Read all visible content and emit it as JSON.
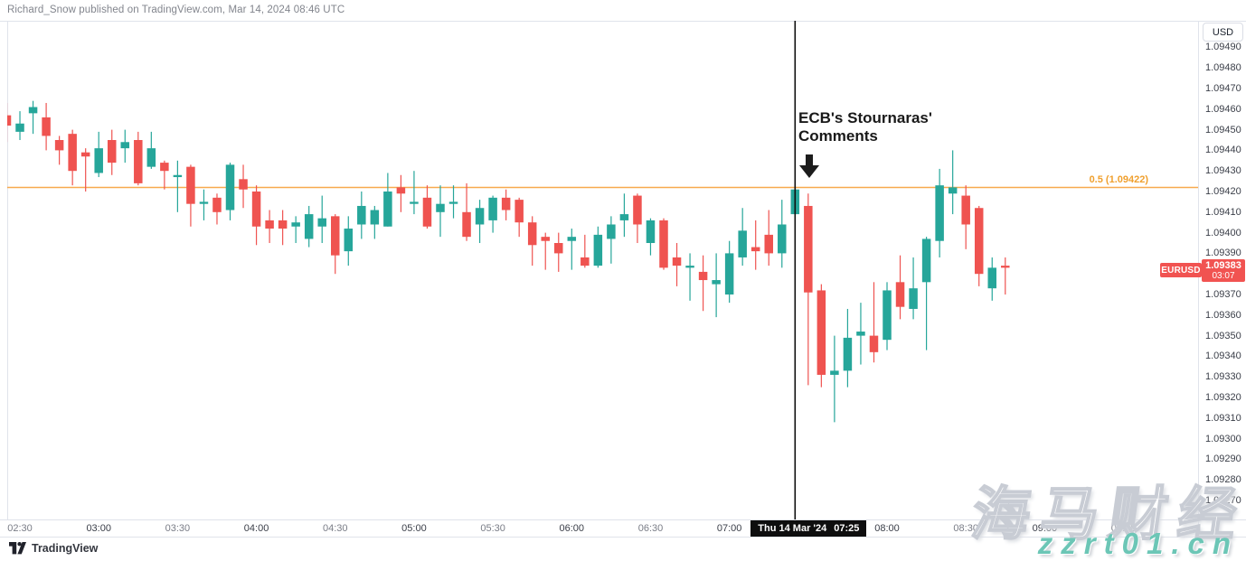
{
  "attribution": "Richard_Snow published on TradingView.com, Mar 14, 2024 08:46 UTC",
  "price_axis": {
    "currency_label": "USD"
  },
  "last_price": {
    "symbol": "EURUSD",
    "value": "1.09383",
    "countdown": "03:07"
  },
  "fib_level": {
    "label": "0.5 (1.09422)",
    "price": 1.09422,
    "line_color": "#F7A94E",
    "text_color": "#F0A02E"
  },
  "event_marker": {
    "annotation_line1": "ECB's Stournaras'",
    "annotation_line2": "Comments",
    "axis_date": "Thu 14 Mar '24",
    "axis_time": "07:25",
    "candle_index": 60
  },
  "footer": {
    "brand": "TradingView"
  },
  "watermark": {
    "title": "海马财经",
    "url": "zzrt01.cn",
    "url_color": "#6CC6B6"
  },
  "chart_data": {
    "type": "candlestick",
    "symbol": "EURUSD",
    "interval": "5m",
    "grid": false,
    "legend_position": "none",
    "up_color": "#26A69A",
    "down_color": "#EF5350",
    "y_axis": {
      "visible_range": [
        1.09262,
        1.09502
      ],
      "ticks": [
        "1.09490",
        "1.09480",
        "1.09470",
        "1.09460",
        "1.09450",
        "1.09440",
        "1.09430",
        "1.09420",
        "1.09410",
        "1.09400",
        "1.09390",
        "1.09370",
        "1.09360",
        "1.09350",
        "1.09340",
        "1.09330",
        "1.09320",
        "1.09310",
        "1.09300",
        "1.09290",
        "1.09280",
        "1.09270"
      ]
    },
    "x_axis": {
      "ticks": [
        {
          "label": "02:30",
          "i": 1,
          "emph": false
        },
        {
          "label": "03:00",
          "i": 7,
          "emph": true
        },
        {
          "label": "03:30",
          "i": 13,
          "emph": false
        },
        {
          "label": "04:00",
          "i": 19,
          "emph": true
        },
        {
          "label": "04:30",
          "i": 25,
          "emph": false
        },
        {
          "label": "05:00",
          "i": 31,
          "emph": true
        },
        {
          "label": "05:30",
          "i": 37,
          "emph": false
        },
        {
          "label": "06:00",
          "i": 43,
          "emph": true
        },
        {
          "label": "06:30",
          "i": 49,
          "emph": false
        },
        {
          "label": "07:00",
          "i": 55,
          "emph": true
        },
        {
          "label": "08:00",
          "i": 67,
          "emph": true
        },
        {
          "label": "08:30",
          "i": 73,
          "emph": false
        },
        {
          "label": "09:00",
          "i": 79,
          "emph": true
        },
        {
          "label": "09:30",
          "i": 85,
          "emph": false
        }
      ]
    },
    "candles": [
      {
        "t": "02:25",
        "o": 1.09457,
        "h": 1.09463,
        "l": 1.09444,
        "c": 1.09452
      },
      {
        "t": "02:30",
        "o": 1.09449,
        "h": 1.09459,
        "l": 1.09445,
        "c": 1.09453
      },
      {
        "t": "02:35",
        "o": 1.09458,
        "h": 1.09464,
        "l": 1.09448,
        "c": 1.09461
      },
      {
        "t": "02:40",
        "o": 1.09456,
        "h": 1.09463,
        "l": 1.0944,
        "c": 1.09447
      },
      {
        "t": "02:45",
        "o": 1.09445,
        "h": 1.09447,
        "l": 1.09433,
        "c": 1.0944
      },
      {
        "t": "02:50",
        "o": 1.09448,
        "h": 1.0945,
        "l": 1.09423,
        "c": 1.0943
      },
      {
        "t": "02:55",
        "o": 1.09439,
        "h": 1.09441,
        "l": 1.0942,
        "c": 1.09437
      },
      {
        "t": "03:00",
        "o": 1.09429,
        "h": 1.09449,
        "l": 1.09427,
        "c": 1.09441
      },
      {
        "t": "03:05",
        "o": 1.09445,
        "h": 1.0945,
        "l": 1.09428,
        "c": 1.09434
      },
      {
        "t": "03:10",
        "o": 1.09441,
        "h": 1.0945,
        "l": 1.09434,
        "c": 1.09444
      },
      {
        "t": "03:15",
        "o": 1.09445,
        "h": 1.09449,
        "l": 1.09423,
        "c": 1.09424
      },
      {
        "t": "03:20",
        "o": 1.09432,
        "h": 1.09449,
        "l": 1.09431,
        "c": 1.09441
      },
      {
        "t": "03:25",
        "o": 1.09434,
        "h": 1.09435,
        "l": 1.09421,
        "c": 1.0943
      },
      {
        "t": "03:30",
        "o": 1.09427,
        "h": 1.09435,
        "l": 1.0941,
        "c": 1.09428
      },
      {
        "t": "03:35",
        "o": 1.09432,
        "h": 1.09433,
        "l": 1.09403,
        "c": 1.09414
      },
      {
        "t": "03:40",
        "o": 1.09414,
        "h": 1.09421,
        "l": 1.09406,
        "c": 1.09415
      },
      {
        "t": "03:45",
        "o": 1.09417,
        "h": 1.09419,
        "l": 1.09404,
        "c": 1.0941
      },
      {
        "t": "03:50",
        "o": 1.09411,
        "h": 1.09434,
        "l": 1.09406,
        "c": 1.09433
      },
      {
        "t": "03:55",
        "o": 1.09426,
        "h": 1.09433,
        "l": 1.09412,
        "c": 1.09421
      },
      {
        "t": "04:00",
        "o": 1.0942,
        "h": 1.09423,
        "l": 1.09394,
        "c": 1.09403
      },
      {
        "t": "04:05",
        "o": 1.09406,
        "h": 1.09411,
        "l": 1.09395,
        "c": 1.09402
      },
      {
        "t": "04:10",
        "o": 1.09406,
        "h": 1.09411,
        "l": 1.09394,
        "c": 1.09402
      },
      {
        "t": "04:15",
        "o": 1.09403,
        "h": 1.09408,
        "l": 1.09395,
        "c": 1.09405
      },
      {
        "t": "04:20",
        "o": 1.09397,
        "h": 1.09413,
        "l": 1.09393,
        "c": 1.09409
      },
      {
        "t": "04:25",
        "o": 1.09403,
        "h": 1.09418,
        "l": 1.09395,
        "c": 1.09407
      },
      {
        "t": "04:30",
        "o": 1.09408,
        "h": 1.09409,
        "l": 1.0938,
        "c": 1.09389
      },
      {
        "t": "04:35",
        "o": 1.09391,
        "h": 1.09408,
        "l": 1.09384,
        "c": 1.09402
      },
      {
        "t": "04:40",
        "o": 1.09404,
        "h": 1.0942,
        "l": 1.09397,
        "c": 1.09413
      },
      {
        "t": "04:45",
        "o": 1.09404,
        "h": 1.09413,
        "l": 1.09397,
        "c": 1.09411
      },
      {
        "t": "04:50",
        "o": 1.09403,
        "h": 1.09429,
        "l": 1.09403,
        "c": 1.0942
      },
      {
        "t": "04:55",
        "o": 1.09422,
        "h": 1.09428,
        "l": 1.0941,
        "c": 1.09419
      },
      {
        "t": "05:00",
        "o": 1.09414,
        "h": 1.0943,
        "l": 1.09409,
        "c": 1.09415
      },
      {
        "t": "05:05",
        "o": 1.09417,
        "h": 1.09423,
        "l": 1.09402,
        "c": 1.09403
      },
      {
        "t": "05:10",
        "o": 1.0941,
        "h": 1.09423,
        "l": 1.09398,
        "c": 1.09414
      },
      {
        "t": "05:15",
        "o": 1.09414,
        "h": 1.09423,
        "l": 1.09407,
        "c": 1.09415
      },
      {
        "t": "05:20",
        "o": 1.0941,
        "h": 1.09424,
        "l": 1.09396,
        "c": 1.09398
      },
      {
        "t": "05:25",
        "o": 1.09404,
        "h": 1.09416,
        "l": 1.09395,
        "c": 1.09412
      },
      {
        "t": "05:30",
        "o": 1.09406,
        "h": 1.09418,
        "l": 1.094,
        "c": 1.09417
      },
      {
        "t": "05:35",
        "o": 1.09417,
        "h": 1.09421,
        "l": 1.09406,
        "c": 1.09411
      },
      {
        "t": "05:40",
        "o": 1.09416,
        "h": 1.09417,
        "l": 1.09398,
        "c": 1.09405
      },
      {
        "t": "05:45",
        "o": 1.09405,
        "h": 1.09408,
        "l": 1.09384,
        "c": 1.09394
      },
      {
        "t": "05:50",
        "o": 1.09398,
        "h": 1.094,
        "l": 1.09382,
        "c": 1.09396
      },
      {
        "t": "05:55",
        "o": 1.09395,
        "h": 1.094,
        "l": 1.09381,
        "c": 1.0939
      },
      {
        "t": "06:00",
        "o": 1.09396,
        "h": 1.09402,
        "l": 1.09382,
        "c": 1.09398
      },
      {
        "t": "06:05",
        "o": 1.09388,
        "h": 1.09399,
        "l": 1.09383,
        "c": 1.09384
      },
      {
        "t": "06:10",
        "o": 1.09384,
        "h": 1.09403,
        "l": 1.09383,
        "c": 1.09399
      },
      {
        "t": "06:15",
        "o": 1.09397,
        "h": 1.09408,
        "l": 1.09385,
        "c": 1.09404
      },
      {
        "t": "06:20",
        "o": 1.09406,
        "h": 1.09419,
        "l": 1.09398,
        "c": 1.09409
      },
      {
        "t": "06:25",
        "o": 1.09418,
        "h": 1.09419,
        "l": 1.09395,
        "c": 1.09404
      },
      {
        "t": "06:30",
        "o": 1.09395,
        "h": 1.09407,
        "l": 1.09389,
        "c": 1.09406
      },
      {
        "t": "06:35",
        "o": 1.09406,
        "h": 1.09407,
        "l": 1.09382,
        "c": 1.09383
      },
      {
        "t": "06:40",
        "o": 1.09388,
        "h": 1.09395,
        "l": 1.09374,
        "c": 1.09384
      },
      {
        "t": "06:45",
        "o": 1.09383,
        "h": 1.0939,
        "l": 1.09367,
        "c": 1.09384
      },
      {
        "t": "06:50",
        "o": 1.09381,
        "h": 1.09389,
        "l": 1.09362,
        "c": 1.09377
      },
      {
        "t": "06:55",
        "o": 1.09375,
        "h": 1.0939,
        "l": 1.09359,
        "c": 1.09377
      },
      {
        "t": "07:00",
        "o": 1.0937,
        "h": 1.09396,
        "l": 1.09366,
        "c": 1.0939
      },
      {
        "t": "07:05",
        "o": 1.09388,
        "h": 1.09412,
        "l": 1.09384,
        "c": 1.09401
      },
      {
        "t": "07:10",
        "o": 1.09393,
        "h": 1.09406,
        "l": 1.09382,
        "c": 1.09391
      },
      {
        "t": "07:15",
        "o": 1.09399,
        "h": 1.09411,
        "l": 1.09384,
        "c": 1.0939
      },
      {
        "t": "07:20",
        "o": 1.0939,
        "h": 1.09416,
        "l": 1.09383,
        "c": 1.09404
      },
      {
        "t": "07:25",
        "o": 1.09409,
        "h": 1.09422,
        "l": 1.09407,
        "c": 1.09421
      },
      {
        "t": "07:30",
        "o": 1.09413,
        "h": 1.09419,
        "l": 1.09326,
        "c": 1.09371
      },
      {
        "t": "07:35",
        "o": 1.09372,
        "h": 1.09375,
        "l": 1.09325,
        "c": 1.09331
      },
      {
        "t": "07:40",
        "o": 1.09331,
        "h": 1.0935,
        "l": 1.09308,
        "c": 1.09333
      },
      {
        "t": "07:45",
        "o": 1.09333,
        "h": 1.09363,
        "l": 1.09325,
        "c": 1.09349
      },
      {
        "t": "07:50",
        "o": 1.0935,
        "h": 1.09366,
        "l": 1.09336,
        "c": 1.09352
      },
      {
        "t": "07:55",
        "o": 1.0935,
        "h": 1.09376,
        "l": 1.09337,
        "c": 1.09342
      },
      {
        "t": "08:00",
        "o": 1.09348,
        "h": 1.09376,
        "l": 1.09343,
        "c": 1.09372
      },
      {
        "t": "08:05",
        "o": 1.09376,
        "h": 1.09389,
        "l": 1.09358,
        "c": 1.09364
      },
      {
        "t": "08:10",
        "o": 1.09363,
        "h": 1.09388,
        "l": 1.09358,
        "c": 1.09373
      },
      {
        "t": "08:15",
        "o": 1.09376,
        "h": 1.09398,
        "l": 1.09343,
        "c": 1.09397
      },
      {
        "t": "08:20",
        "o": 1.09396,
        "h": 1.09431,
        "l": 1.09388,
        "c": 1.09423
      },
      {
        "t": "08:25",
        "o": 1.09419,
        "h": 1.0944,
        "l": 1.09409,
        "c": 1.09422
      },
      {
        "t": "08:30",
        "o": 1.09418,
        "h": 1.09423,
        "l": 1.09392,
        "c": 1.09404
      },
      {
        "t": "08:35",
        "o": 1.09412,
        "h": 1.09413,
        "l": 1.09374,
        "c": 1.0938
      },
      {
        "t": "08:40",
        "o": 1.09373,
        "h": 1.09388,
        "l": 1.09367,
        "c": 1.09383
      },
      {
        "t": "08:45",
        "o": 1.09384,
        "h": 1.09388,
        "l": 1.0937,
        "c": 1.09383
      }
    ]
  }
}
